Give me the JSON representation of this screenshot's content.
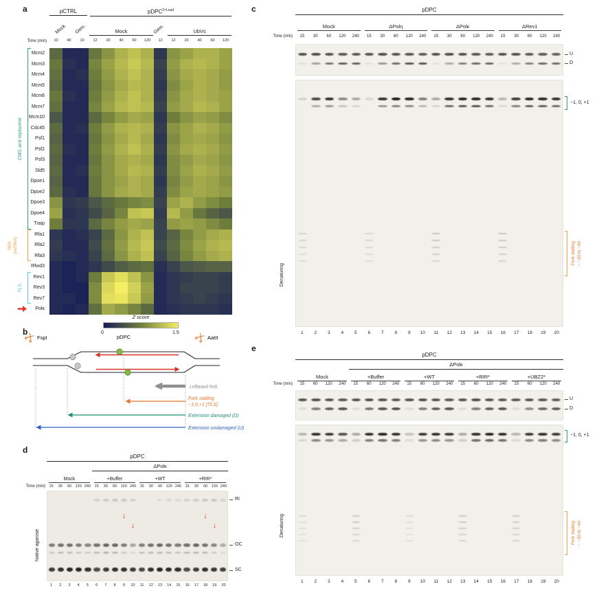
{
  "accents": {
    "tls_bracket": "#2f9e6e",
    "stall_bracket": "#ef9f4a",
    "stall_text": "#e0762c",
    "arrow_red": "#e8332a"
  },
  "a": {
    "panel_label": "a",
    "top_groups": [
      {
        "base": "pCTRL",
        "sup": "",
        "span": 3
      },
      {
        "base": "pDPC",
        "sup": "2×Lead",
        "span": 11
      }
    ],
    "sub_groups": [
      {
        "label": "Mock",
        "span": 2
      },
      {
        "label": "Gem.",
        "span": 1
      },
      {
        "label": "Mock",
        "span": 5
      },
      {
        "label": "Gem.",
        "span": 1
      },
      {
        "label": "UbVs",
        "span": 5
      }
    ],
    "time_label": "Time (min)",
    "times": [
      "10",
      "40",
      "10",
      "12",
      "20",
      "40",
      "60",
      "120",
      "12",
      "12",
      "20",
      "40",
      "60",
      "120"
    ],
    "rows": [
      "Mcm2",
      "Mcm3",
      "Mcm4",
      "Mcm5",
      "Mcm6",
      "Mcm7",
      "Mcm10",
      "Cdc45",
      "Psf1",
      "Psf2",
      "Psf3",
      "Sld5",
      "Dpoe1",
      "Dpoe2",
      "Dpoe3",
      "Dpoe4",
      "Traip",
      "Rfa1",
      "Rfa2",
      "Rfa3",
      "Rfwd3",
      "Rev1",
      "Rev3",
      "Rev7",
      "Polκ"
    ],
    "row_groups": [
      {
        "label": "CMG and replisome",
        "label2": "",
        "color": "#2fa576"
      },
      {
        "label": "RPA",
        "label2": "(ssDNA)",
        "color": "#f0a04b"
      },
      {
        "label": "TLS",
        "label2": "",
        "color": "#5bc8e8"
      }
    ],
    "arrow_row": "Polκ",
    "arrow_color": "#e8332a",
    "colorbar": {
      "title": "Z score",
      "min": "0",
      "max": "1.5"
    },
    "colormap": {
      "stops": [
        "#161d59",
        "#6e7d3c",
        "#f5ee62"
      ],
      "domain": [
        0,
        0.75,
        1.5
      ]
    },
    "matrix": [
      [
        0.6,
        0.1,
        0.1,
        0.7,
        0.9,
        1.1,
        1.2,
        1.1,
        0.2,
        0.9,
        1.0,
        1.1,
        1.1,
        1.0
      ],
      [
        0.7,
        0.15,
        0.1,
        0.8,
        1.0,
        1.15,
        1.25,
        1.15,
        0.3,
        0.95,
        1.1,
        1.15,
        1.1,
        1.0
      ],
      [
        0.65,
        0.1,
        0.15,
        0.75,
        0.95,
        1.1,
        1.2,
        1.1,
        0.25,
        0.9,
        1.05,
        1.1,
        1.05,
        0.95
      ],
      [
        0.6,
        0.1,
        0.1,
        0.7,
        0.9,
        1.05,
        1.15,
        1.1,
        0.2,
        0.85,
        1.0,
        1.1,
        1.05,
        0.95
      ],
      [
        0.7,
        0.15,
        0.1,
        0.75,
        0.95,
        1.1,
        1.2,
        1.1,
        0.25,
        0.9,
        1.05,
        1.1,
        1.05,
        1.0
      ],
      [
        0.65,
        0.1,
        0.1,
        0.8,
        1.0,
        1.15,
        1.2,
        1.15,
        0.3,
        0.95,
        1.05,
        1.15,
        1.1,
        1.0
      ],
      [
        0.45,
        0.1,
        0.1,
        0.6,
        0.8,
        0.95,
        1.05,
        1.0,
        0.2,
        0.75,
        0.9,
        1.0,
        0.95,
        0.85
      ],
      [
        0.6,
        0.1,
        0.15,
        0.75,
        0.95,
        1.1,
        1.15,
        1.1,
        0.25,
        0.9,
        1.0,
        1.1,
        1.05,
        0.95
      ],
      [
        0.55,
        0.1,
        0.1,
        0.7,
        0.9,
        1.05,
        1.15,
        1.05,
        0.2,
        0.85,
        1.0,
        1.05,
        1.0,
        0.9
      ],
      [
        0.6,
        0.15,
        0.1,
        0.75,
        0.95,
        1.1,
        1.2,
        1.1,
        0.25,
        0.9,
        1.05,
        1.1,
        1.05,
        0.95
      ],
      [
        0.55,
        0.1,
        0.1,
        0.7,
        0.9,
        1.05,
        1.1,
        1.05,
        0.2,
        0.85,
        0.95,
        1.05,
        1.0,
        0.9
      ],
      [
        0.6,
        0.1,
        0.15,
        0.75,
        0.9,
        1.05,
        1.15,
        1.1,
        0.25,
        0.85,
        1.0,
        1.1,
        1.05,
        0.95
      ],
      [
        0.55,
        0.1,
        0.1,
        0.7,
        0.9,
        1.0,
        1.1,
        1.05,
        0.2,
        0.8,
        0.95,
        1.05,
        1.0,
        0.9
      ],
      [
        0.6,
        0.15,
        0.1,
        0.7,
        0.9,
        1.05,
        1.1,
        1.05,
        0.25,
        0.85,
        1.0,
        1.05,
        1.0,
        0.95
      ],
      [
        0.9,
        0.2,
        0.25,
        0.45,
        0.6,
        0.7,
        0.8,
        0.85,
        0.3,
        1.0,
        1.1,
        0.95,
        0.85,
        0.75
      ],
      [
        1.0,
        0.15,
        0.2,
        0.35,
        0.55,
        0.8,
        1.2,
        1.25,
        0.25,
        1.15,
        0.95,
        0.7,
        0.55,
        0.45
      ],
      [
        0.75,
        0.2,
        0.2,
        0.6,
        0.8,
        0.95,
        1.05,
        1.0,
        0.3,
        0.95,
        1.0,
        0.95,
        0.85,
        0.75
      ],
      [
        0.2,
        0.1,
        0.15,
        0.3,
        0.6,
        0.9,
        1.1,
        1.2,
        0.3,
        0.55,
        0.8,
        0.95,
        1.05,
        1.1
      ],
      [
        0.25,
        0.1,
        0.1,
        0.35,
        0.65,
        0.95,
        1.15,
        1.25,
        0.35,
        0.6,
        0.85,
        1.0,
        1.1,
        1.15
      ],
      [
        0.2,
        0.15,
        0.1,
        0.3,
        0.6,
        0.9,
        1.1,
        1.2,
        0.3,
        0.55,
        0.8,
        0.95,
        1.05,
        1.1
      ],
      [
        0.1,
        0.05,
        0.1,
        0.2,
        0.35,
        0.5,
        0.6,
        0.65,
        0.15,
        0.3,
        0.45,
        0.5,
        0.55,
        0.55
      ],
      [
        0.1,
        0.05,
        0.1,
        0.75,
        1.25,
        1.4,
        1.2,
        0.9,
        0.1,
        0.2,
        0.25,
        0.3,
        0.3,
        0.25
      ],
      [
        0.1,
        0.05,
        0.05,
        0.85,
        1.35,
        1.5,
        1.3,
        1.0,
        0.1,
        0.2,
        0.3,
        0.3,
        0.3,
        0.25
      ],
      [
        0.1,
        0.1,
        0.05,
        0.85,
        1.4,
        1.45,
        1.25,
        0.95,
        0.1,
        0.2,
        0.25,
        0.3,
        0.25,
        0.2
      ],
      [
        0.1,
        0.05,
        0.1,
        0.65,
        1.05,
        0.95,
        0.8,
        0.6,
        0.1,
        0.15,
        0.2,
        0.2,
        0.2,
        0.15
      ]
    ]
  },
  "b": {
    "panel_label": "b",
    "enzyme_left": "FspI",
    "lesion_label": "pDPC",
    "enzyme_right": "AatII",
    "strand_color": "#d93025",
    "dpc_color": "#86b94c",
    "annotations": [
      {
        "label": "Leftward fork",
        "color": "#8f8f8f"
      },
      {
        "label": "Fork stalling",
        "label2": "−1,0,+1 (TLS)",
        "color": "#e8762c"
      },
      {
        "label": "Extension damaged (D)",
        "color": "#1f8f7a"
      },
      {
        "label": "Extension undamaged (U)",
        "color": "#2f5fc4"
      }
    ]
  },
  "c": {
    "panel_label": "c",
    "title": "pDPC",
    "groups": [
      {
        "label": "Mock",
        "span": 5
      },
      {
        "label": "ΔPolη",
        "span": 5
      },
      {
        "label": "ΔPolκ",
        "span": 5
      },
      {
        "label": "ΔRev1",
        "span": 5
      }
    ],
    "time_label": "Time (min)",
    "times": [
      "15",
      "30",
      "60",
      "120",
      "240",
      "15",
      "30",
      "60",
      "120",
      "240",
      "15",
      "30",
      "60",
      "120",
      "240",
      "15",
      "30",
      "60",
      "120",
      "240"
    ],
    "lane_numbers": [
      "1",
      "2",
      "3",
      "4",
      "5",
      "6",
      "7",
      "8",
      "9",
      "10",
      "11",
      "12",
      "13",
      "14",
      "15",
      "16",
      "17",
      "18",
      "19",
      "20"
    ],
    "left_label": "Denaturing",
    "right_labels": {
      "u": "U",
      "d": "D",
      "tls": "−1, 0, +1",
      "stall_1": "Fork stalling",
      "stall_2": "~ −30 to −40"
    },
    "gel_top": {
      "lanes": 20,
      "bands": [
        {
          "y": 0.32,
          "h": 4,
          "intensities": [
            0.7,
            0.72,
            0.7,
            0.68,
            0.68,
            0.7,
            0.72,
            0.7,
            0.68,
            0.66,
            0.7,
            0.72,
            0.7,
            0.68,
            0.66,
            0.7,
            0.7,
            0.68,
            0.66,
            0.64
          ]
        },
        {
          "y": 0.62,
          "h": 3.5,
          "intensities": [
            0.06,
            0.35,
            0.55,
            0.65,
            0.65,
            0.06,
            0.4,
            0.6,
            0.7,
            0.7,
            0.06,
            0.3,
            0.5,
            0.6,
            0.62,
            0.06,
            0.3,
            0.5,
            0.6,
            0.6
          ]
        }
      ]
    },
    "gel_bottom": {
      "lanes": 20,
      "bands": [
        {
          "y": 0.075,
          "h": 4.5,
          "intensities": [
            0.12,
            0.75,
            0.85,
            0.45,
            0.3,
            0.1,
            0.85,
            0.95,
            0.9,
            0.5,
            0.3,
            0.85,
            0.9,
            0.9,
            0.85,
            0.25,
            0.8,
            0.9,
            0.9,
            0.85
          ]
        },
        {
          "y": 0.105,
          "h": 3.5,
          "intensities": [
            0,
            0.3,
            0.4,
            0.2,
            0.12,
            0,
            0.4,
            0.5,
            0.45,
            0.25,
            0.12,
            0.6,
            0.7,
            0.7,
            0.6,
            0.1,
            0.5,
            0.65,
            0.65,
            0.6
          ]
        }
      ],
      "ladders": [
        {
          "lanes": [
            1,
            6
          ],
          "y": 0.62,
          "count": 5,
          "gap": 10,
          "alpha": 0.13
        },
        {
          "lanes": [
            11,
            16
          ],
          "y": 0.62,
          "count": 5,
          "gap": 10,
          "alpha": 0.2
        }
      ]
    }
  },
  "d": {
    "panel_label": "d",
    "title": "pDPC",
    "subtitle": "ΔPolκ",
    "groups": [
      {
        "label": "Mock",
        "span": 5
      },
      {
        "label": "+Buffer",
        "span": 5
      },
      {
        "label": "+WT",
        "span": 5
      },
      {
        "label": "+RIR*",
        "span": 5
      }
    ],
    "time_label": "Time (min)",
    "times": [
      "15",
      "30",
      "60",
      "120",
      "240",
      "15",
      "30",
      "60",
      "120",
      "240",
      "15",
      "30",
      "60",
      "120",
      "240",
      "15",
      "30",
      "60",
      "120",
      "240"
    ],
    "lane_numbers": [
      "1",
      "2",
      "3",
      "4",
      "5",
      "6",
      "7",
      "8",
      "9",
      "10",
      "11",
      "12",
      "13",
      "14",
      "15",
      "16",
      "17",
      "18",
      "19",
      "20"
    ],
    "left_label": "Native agarose",
    "right_labels": {
      "ri": "RI",
      "oc": "OC",
      "sc": "SC"
    },
    "arrows": {
      "lanes": [
        9,
        10,
        18,
        19
      ]
    },
    "gel": {
      "lanes": 20,
      "bands": [
        {
          "y": 0.1,
          "h": 3.5,
          "intensities": [
            0,
            0,
            0,
            0,
            0,
            0.1,
            0.14,
            0.16,
            0.16,
            0.12,
            0,
            0,
            0.06,
            0.09,
            0.08,
            0.1,
            0.14,
            0.16,
            0.16,
            0.12
          ]
        },
        {
          "y": 0.6,
          "h": 5,
          "intensities": [
            0.5,
            0.55,
            0.55,
            0.5,
            0.45,
            0.55,
            0.6,
            0.6,
            0.5,
            0.3,
            0.5,
            0.55,
            0.6,
            0.55,
            0.5,
            0.55,
            0.6,
            0.55,
            0.45,
            0.28
          ]
        },
        {
          "y": 0.69,
          "h": 3.5,
          "intensities": [
            0.15,
            0.2,
            0.2,
            0.15,
            0.12,
            0.2,
            0.25,
            0.22,
            0.15,
            0.08,
            0.18,
            0.2,
            0.22,
            0.2,
            0.15,
            0.2,
            0.22,
            0.2,
            0.12,
            0.06
          ]
        },
        {
          "y": 0.88,
          "h": 6,
          "intensities": [
            0.8,
            0.85,
            0.9,
            0.9,
            0.85,
            0.72,
            0.8,
            0.85,
            0.85,
            0.8,
            0.75,
            0.85,
            0.9,
            0.88,
            0.85,
            0.72,
            0.8,
            0.85,
            0.82,
            0.78
          ]
        }
      ]
    }
  },
  "e": {
    "panel_label": "e",
    "title": "pDPC",
    "subtitle": "ΔPolκ",
    "groups": [
      {
        "label": "Mock",
        "span": 4
      },
      {
        "label": "+Buffer",
        "span": 4
      },
      {
        "label": "+WT",
        "span": 4
      },
      {
        "label": "+RIR*",
        "span": 4
      },
      {
        "label": "+UBZ2*",
        "span": 4
      }
    ],
    "time_label": "Time (min)",
    "times": [
      "15",
      "60",
      "120",
      "240",
      "15",
      "60",
      "120",
      "240",
      "15",
      "60",
      "120",
      "240",
      "15",
      "60",
      "120",
      "240",
      "15",
      "60",
      "120",
      "240"
    ],
    "lane_numbers": [
      "1",
      "2",
      "3",
      "4",
      "5",
      "6",
      "7",
      "8",
      "9",
      "10",
      "11",
      "12",
      "13",
      "14",
      "15",
      "16",
      "17",
      "18",
      "19",
      "20"
    ],
    "left_label": "Denaturing",
    "right_labels": {
      "u": "U",
      "d": "D",
      "tls": "−1, 0, +1",
      "stall_1": "Fork stalling",
      "stall_2": "~ −30 to −40"
    },
    "gel_top": {
      "lanes": 20,
      "bands": [
        {
          "y": 0.3,
          "h": 4,
          "intensities": [
            0.7,
            0.72,
            0.7,
            0.68,
            0.7,
            0.72,
            0.7,
            0.68,
            0.7,
            0.72,
            0.7,
            0.68,
            0.7,
            0.72,
            0.7,
            0.68,
            0.68,
            0.7,
            0.68,
            0.66
          ]
        },
        {
          "y": 0.62,
          "h": 3.5,
          "intensities": [
            0.08,
            0.5,
            0.65,
            0.7,
            0.08,
            0.55,
            0.7,
            0.72,
            0.08,
            0.5,
            0.65,
            0.7,
            0.08,
            0.5,
            0.65,
            0.7,
            0.08,
            0.45,
            0.6,
            0.66
          ]
        }
      ]
    },
    "gel_bottom": {
      "lanes": 20,
      "bands": [
        {
          "y": 0.06,
          "h": 4.5,
          "intensities": [
            0.25,
            0.85,
            0.8,
            0.7,
            0.3,
            0.85,
            0.9,
            0.85,
            0.2,
            0.8,
            0.85,
            0.8,
            0.3,
            0.85,
            0.9,
            0.85,
            0.25,
            0.8,
            0.85,
            0.8
          ]
        },
        {
          "y": 0.1,
          "h": 3.5,
          "intensities": [
            0.1,
            0.45,
            0.4,
            0.3,
            0.15,
            0.5,
            0.55,
            0.5,
            0.08,
            0.4,
            0.45,
            0.4,
            0.15,
            0.55,
            0.6,
            0.55,
            0.1,
            0.45,
            0.5,
            0.45
          ]
        }
      ],
      "ladders": [
        {
          "lanes": [
            1,
            9
          ],
          "y": 0.6,
          "count": 5,
          "gap": 9,
          "alpha": 0.1
        },
        {
          "lanes": [
            5,
            13,
            17
          ],
          "y": 0.6,
          "count": 5,
          "gap": 9,
          "alpha": 0.18
        }
      ]
    }
  }
}
